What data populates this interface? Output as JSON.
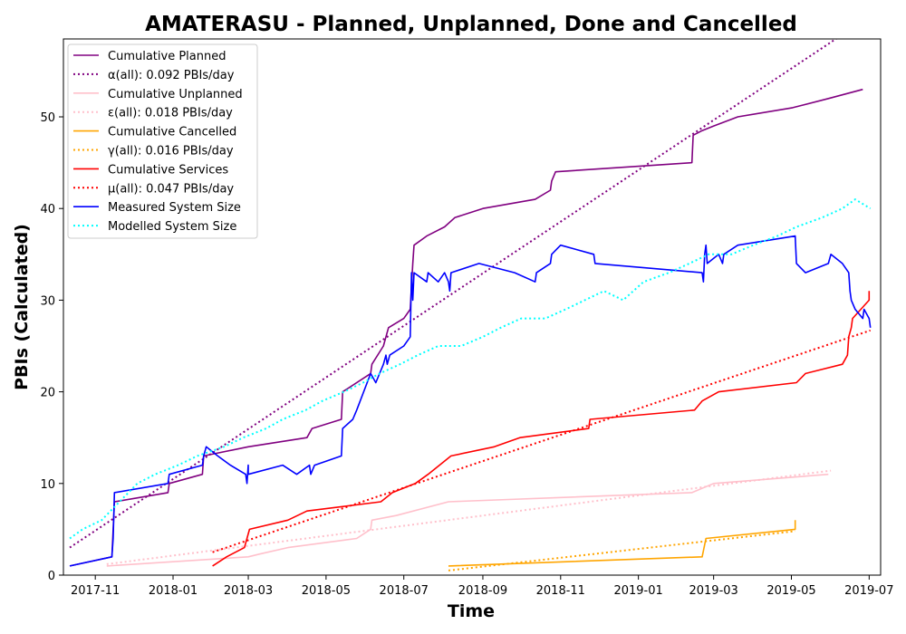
{
  "chart_data": {
    "type": "line",
    "title": "AMATERASU - Planned, Unplanned, Done  and Cancelled",
    "xlabel": "Time",
    "ylabel": "PBIs (Calculated)",
    "x_range": [
      "2017-10-07",
      "2019-07-10"
    ],
    "ylim": [
      0,
      58.5
    ],
    "grid": false,
    "legend_position": "top-left",
    "x_ticks": [
      "2017-11",
      "2018-01",
      "2018-03",
      "2018-05",
      "2018-07",
      "2018-09",
      "2018-11",
      "2019-01",
      "2019-03",
      "2019-05",
      "2019-07"
    ],
    "y_ticks": [
      0,
      10,
      20,
      30,
      40,
      50
    ],
    "series": [
      {
        "name": "Cumulative Planned",
        "color": "#800080",
        "style": "solid",
        "points": [
          [
            "2017-10-12",
            1
          ],
          [
            "2017-11-14",
            2
          ],
          [
            "2017-11-16",
            8
          ],
          [
            "2017-12-28",
            9
          ],
          [
            "2017-12-29",
            10
          ],
          [
            "2018-01-24",
            11
          ],
          [
            "2018-01-25",
            13
          ],
          [
            "2018-03-01",
            14
          ],
          [
            "2018-04-16",
            15
          ],
          [
            "2018-04-20",
            16
          ],
          [
            "2018-05-13",
            17
          ],
          [
            "2018-05-14",
            20
          ],
          [
            "2018-06-05",
            22
          ],
          [
            "2018-06-06",
            23
          ],
          [
            "2018-06-15",
            25
          ],
          [
            "2018-06-19",
            27
          ],
          [
            "2018-07-01",
            28
          ],
          [
            "2018-07-06",
            29
          ],
          [
            "2018-07-08",
            34
          ],
          [
            "2018-07-09",
            36
          ],
          [
            "2018-07-19",
            37
          ],
          [
            "2018-08-02",
            38
          ],
          [
            "2018-08-10",
            39
          ],
          [
            "2018-09-01",
            40
          ],
          [
            "2018-10-12",
            41
          ],
          [
            "2018-10-24",
            42
          ],
          [
            "2018-10-25",
            43
          ],
          [
            "2018-10-28",
            44
          ],
          [
            "2019-02-12",
            45
          ],
          [
            "2019-02-13",
            48
          ],
          [
            "2019-02-20",
            48.5
          ],
          [
            "2019-03-01",
            49
          ],
          [
            "2019-03-20",
            50
          ],
          [
            "2019-05-02",
            51
          ],
          [
            "2019-05-30",
            52
          ],
          [
            "2019-06-26",
            53
          ]
        ]
      },
      {
        "name": "α(all): 0.092 PBIs/day",
        "color": "#800080",
        "style": "dotted",
        "points": [
          [
            "2017-10-12",
            3
          ],
          [
            "2019-07-02",
            61
          ]
        ]
      },
      {
        "name": "Cumulative Unplanned",
        "color": "#ffc0cb",
        "style": "solid",
        "points": [
          [
            "2017-11-10",
            1
          ],
          [
            "2018-03-01",
            2
          ],
          [
            "2018-03-10",
            2.3
          ],
          [
            "2018-04-01",
            3
          ],
          [
            "2018-05-25",
            4
          ],
          [
            "2018-06-05",
            5
          ],
          [
            "2018-06-06",
            6
          ],
          [
            "2018-06-25",
            6.5
          ],
          [
            "2018-08-05",
            8
          ],
          [
            "2019-02-12",
            9
          ],
          [
            "2019-03-01",
            10
          ],
          [
            "2019-05-30",
            11
          ]
        ]
      },
      {
        "name": "ε(all): 0.018 PBIs/day",
        "color": "#ffc0cb",
        "style": "dotted",
        "points": [
          [
            "2017-11-10",
            1.2
          ],
          [
            "2019-06-01",
            11.4
          ]
        ]
      },
      {
        "name": "Cumulative Cancelled",
        "color": "#ffa500",
        "style": "solid",
        "points": [
          [
            "2018-08-05",
            1
          ],
          [
            "2019-02-20",
            2
          ],
          [
            "2019-02-23",
            4
          ],
          [
            "2019-05-04",
            5
          ],
          [
            "2019-05-04",
            6
          ]
        ]
      },
      {
        "name": "γ(all): 0.016 PBIs/day",
        "color": "#ffa500",
        "style": "dotted",
        "points": [
          [
            "2018-08-05",
            0.5
          ],
          [
            "2019-05-04",
            4.8
          ]
        ]
      },
      {
        "name": "Cumulative Services",
        "color": "#ff0000",
        "style": "solid",
        "points": [
          [
            "2018-02-01",
            1
          ],
          [
            "2018-02-12",
            2
          ],
          [
            "2018-02-26",
            3
          ],
          [
            "2018-02-28",
            4
          ],
          [
            "2018-03-02",
            5
          ],
          [
            "2018-04-01",
            6
          ],
          [
            "2018-04-16",
            7
          ],
          [
            "2018-06-13",
            8
          ],
          [
            "2018-06-22",
            9
          ],
          [
            "2018-07-10",
            10
          ],
          [
            "2018-07-20",
            11
          ],
          [
            "2018-08-07",
            13
          ],
          [
            "2018-09-10",
            14
          ],
          [
            "2018-09-30",
            15
          ],
          [
            "2018-11-23",
            16
          ],
          [
            "2018-11-24",
            17
          ],
          [
            "2019-02-14",
            18
          ],
          [
            "2019-02-20",
            19
          ],
          [
            "2019-03-05",
            20
          ],
          [
            "2019-05-05",
            21
          ],
          [
            "2019-05-12",
            22
          ],
          [
            "2019-06-10",
            23
          ],
          [
            "2019-06-14",
            24
          ],
          [
            "2019-06-15",
            26
          ],
          [
            "2019-06-17",
            27
          ],
          [
            "2019-06-18",
            28
          ],
          [
            "2019-07-01",
            30
          ],
          [
            "2019-07-01",
            31
          ]
        ]
      },
      {
        "name": "μ(all): 0.047 PBIs/day",
        "color": "#ff0000",
        "style": "dotted",
        "points": [
          [
            "2018-02-01",
            2.5
          ],
          [
            "2019-07-02",
            26.7
          ]
        ]
      },
      {
        "name": "Measured System Size",
        "color": "#0000ff",
        "style": "solid",
        "points": [
          [
            "2017-10-12",
            1
          ],
          [
            "2017-11-14",
            2
          ],
          [
            "2017-11-15",
            4
          ],
          [
            "2017-11-16",
            9
          ],
          [
            "2017-12-28",
            10
          ],
          [
            "2017-12-29",
            11
          ],
          [
            "2018-01-24",
            12
          ],
          [
            "2018-01-25",
            13
          ],
          [
            "2018-01-27",
            14
          ],
          [
            "2018-02-05",
            13
          ],
          [
            "2018-02-15",
            12
          ],
          [
            "2018-02-27",
            11
          ],
          [
            "2018-02-28",
            10
          ],
          [
            "2018-03-01",
            12
          ],
          [
            "2018-03-01",
            11
          ],
          [
            "2018-03-28",
            12
          ],
          [
            "2018-04-08",
            11
          ],
          [
            "2018-04-18",
            12
          ],
          [
            "2018-04-19",
            11
          ],
          [
            "2018-04-22",
            12
          ],
          [
            "2018-05-13",
            13
          ],
          [
            "2018-05-14",
            16
          ],
          [
            "2018-05-22",
            17
          ],
          [
            "2018-05-25",
            18
          ],
          [
            "2018-06-05",
            22
          ],
          [
            "2018-06-09",
            21
          ],
          [
            "2018-06-15",
            23
          ],
          [
            "2018-06-17",
            24
          ],
          [
            "2018-06-18",
            23
          ],
          [
            "2018-06-20",
            24
          ],
          [
            "2018-07-01",
            25
          ],
          [
            "2018-07-06",
            26
          ],
          [
            "2018-07-07",
            33
          ],
          [
            "2018-07-08",
            30
          ],
          [
            "2018-07-09",
            33
          ],
          [
            "2018-07-19",
            32
          ],
          [
            "2018-07-20",
            33
          ],
          [
            "2018-07-28",
            32
          ],
          [
            "2018-08-02",
            33
          ],
          [
            "2018-08-05",
            32
          ],
          [
            "2018-08-06",
            31
          ],
          [
            "2018-08-07",
            33
          ],
          [
            "2018-08-29",
            34
          ],
          [
            "2018-09-26",
            33
          ],
          [
            "2018-10-12",
            32
          ],
          [
            "2018-10-13",
            33
          ],
          [
            "2018-10-24",
            34
          ],
          [
            "2018-10-25",
            35
          ],
          [
            "2018-11-01",
            36
          ],
          [
            "2018-11-27",
            35
          ],
          [
            "2018-11-28",
            34
          ],
          [
            "2019-02-20",
            33
          ],
          [
            "2019-02-21",
            32
          ],
          [
            "2019-02-22",
            35
          ],
          [
            "2019-02-23",
            36
          ],
          [
            "2019-02-24",
            34
          ],
          [
            "2019-03-05",
            35
          ],
          [
            "2019-03-08",
            34
          ],
          [
            "2019-03-09",
            35
          ],
          [
            "2019-03-20",
            36
          ],
          [
            "2019-05-04",
            37
          ],
          [
            "2019-05-05",
            34
          ],
          [
            "2019-05-12",
            33
          ],
          [
            "2019-05-30",
            34
          ],
          [
            "2019-06-01",
            35
          ],
          [
            "2019-06-10",
            34
          ],
          [
            "2019-06-15",
            33
          ],
          [
            "2019-06-16",
            31
          ],
          [
            "2019-06-17",
            30
          ],
          [
            "2019-06-20",
            29
          ],
          [
            "2019-06-26",
            28
          ],
          [
            "2019-06-27",
            29
          ],
          [
            "2019-07-01",
            28
          ],
          [
            "2019-07-02",
            27
          ]
        ]
      },
      {
        "name": "Modelled System Size",
        "color": "#00ffff",
        "style": "dotted",
        "points": [
          [
            "2017-10-12",
            4
          ],
          [
            "2017-10-22",
            5
          ],
          [
            "2017-11-06",
            6
          ],
          [
            "2017-11-20",
            8
          ],
          [
            "2017-12-04",
            10
          ],
          [
            "2017-12-18",
            11
          ],
          [
            "2018-01-05",
            12
          ],
          [
            "2018-01-20",
            13
          ],
          [
            "2018-02-10",
            14
          ],
          [
            "2018-02-25",
            15
          ],
          [
            "2018-03-15",
            16
          ],
          [
            "2018-03-28",
            17
          ],
          [
            "2018-04-15",
            18
          ],
          [
            "2018-04-28",
            19
          ],
          [
            "2018-05-15",
            20
          ],
          [
            "2018-05-30",
            21
          ],
          [
            "2018-06-12",
            22
          ],
          [
            "2018-06-28",
            23
          ],
          [
            "2018-07-12",
            24
          ],
          [
            "2018-07-28",
            25
          ],
          [
            "2018-08-15",
            25
          ],
          [
            "2018-09-01",
            26
          ],
          [
            "2018-09-15",
            27
          ],
          [
            "2018-10-01",
            28
          ],
          [
            "2018-10-20",
            28
          ],
          [
            "2018-11-05",
            29
          ],
          [
            "2018-11-20",
            30
          ],
          [
            "2018-12-05",
            31
          ],
          [
            "2018-12-20",
            30
          ],
          [
            "2019-01-05",
            32
          ],
          [
            "2019-01-25",
            33
          ],
          [
            "2019-02-10",
            34
          ],
          [
            "2019-02-25",
            35
          ],
          [
            "2019-03-15",
            35
          ],
          [
            "2019-04-01",
            36
          ],
          [
            "2019-04-20",
            37
          ],
          [
            "2019-05-05",
            38
          ],
          [
            "2019-05-25",
            39
          ],
          [
            "2019-06-10",
            40
          ],
          [
            "2019-06-20",
            41
          ],
          [
            "2019-07-02",
            40
          ]
        ]
      }
    ]
  }
}
